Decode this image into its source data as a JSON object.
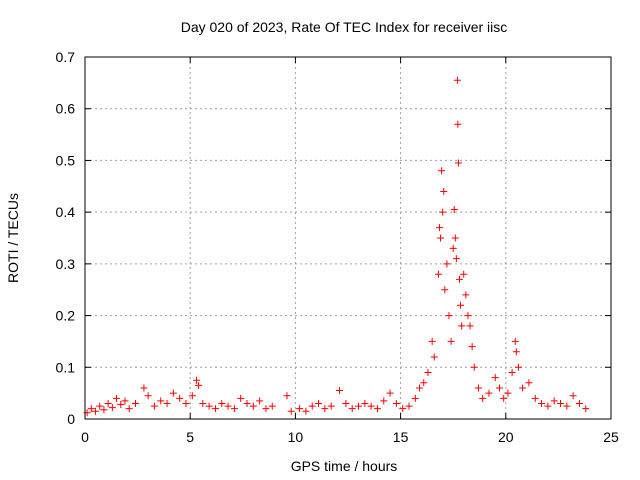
{
  "chart_data": {
    "type": "scatter",
    "title": "Day 020 of 2023, Rate Of TEC Index for receiver iisc",
    "xlabel": "GPS time / hours",
    "ylabel": "ROTI / TECUs",
    "xlim": [
      0,
      25
    ],
    "ylim": [
      0,
      0.7
    ],
    "x_ticks": [
      0,
      5,
      10,
      15,
      20,
      25
    ],
    "x_tick_labels": [
      "0",
      "5",
      "10",
      "15",
      "20",
      "25"
    ],
    "y_ticks": [
      0,
      0.1,
      0.2,
      0.3,
      0.4,
      0.5,
      0.6,
      0.7
    ],
    "y_tick_labels": [
      "0",
      "0.1",
      "0.2",
      "0.3",
      "0.4",
      "0.5",
      "0.6",
      "0.7"
    ],
    "grid": true,
    "marker": "+",
    "color": "#ff0000",
    "series": [
      {
        "name": "ROTI",
        "points": [
          [
            0.1,
            0.012
          ],
          [
            0.3,
            0.02
          ],
          [
            0.5,
            0.015
          ],
          [
            0.7,
            0.025
          ],
          [
            0.9,
            0.018
          ],
          [
            1.1,
            0.03
          ],
          [
            1.3,
            0.022
          ],
          [
            1.5,
            0.04
          ],
          [
            1.7,
            0.028
          ],
          [
            1.9,
            0.035
          ],
          [
            2.1,
            0.02
          ],
          [
            2.4,
            0.03
          ],
          [
            2.8,
            0.06
          ],
          [
            3.0,
            0.045
          ],
          [
            3.3,
            0.025
          ],
          [
            3.6,
            0.035
          ],
          [
            3.9,
            0.03
          ],
          [
            4.2,
            0.05
          ],
          [
            4.5,
            0.04
          ],
          [
            4.8,
            0.03
          ],
          [
            5.1,
            0.045
          ],
          [
            5.3,
            0.075
          ],
          [
            5.4,
            0.065
          ],
          [
            5.6,
            0.03
          ],
          [
            5.9,
            0.025
          ],
          [
            6.2,
            0.02
          ],
          [
            6.5,
            0.03
          ],
          [
            6.8,
            0.025
          ],
          [
            7.1,
            0.02
          ],
          [
            7.4,
            0.04
          ],
          [
            7.7,
            0.03
          ],
          [
            8.0,
            0.025
          ],
          [
            8.3,
            0.035
          ],
          [
            8.6,
            0.02
          ],
          [
            8.9,
            0.025
          ],
          [
            9.6,
            0.045
          ],
          [
            9.8,
            0.015
          ],
          [
            10.2,
            0.02
          ],
          [
            10.5,
            0.015
          ],
          [
            10.8,
            0.025
          ],
          [
            11.1,
            0.03
          ],
          [
            11.4,
            0.02
          ],
          [
            11.7,
            0.025
          ],
          [
            12.1,
            0.055
          ],
          [
            12.4,
            0.03
          ],
          [
            12.7,
            0.02
          ],
          [
            13.0,
            0.025
          ],
          [
            13.3,
            0.03
          ],
          [
            13.6,
            0.025
          ],
          [
            13.9,
            0.02
          ],
          [
            14.2,
            0.035
          ],
          [
            14.5,
            0.05
          ],
          [
            14.8,
            0.03
          ],
          [
            15.1,
            0.02
          ],
          [
            15.4,
            0.025
          ],
          [
            15.7,
            0.04
          ],
          [
            15.9,
            0.06
          ],
          [
            16.1,
            0.07
          ],
          [
            16.3,
            0.09
          ],
          [
            16.5,
            0.15
          ],
          [
            16.6,
            0.12
          ],
          [
            16.8,
            0.28
          ],
          [
            16.85,
            0.37
          ],
          [
            16.9,
            0.35
          ],
          [
            16.95,
            0.48
          ],
          [
            17.0,
            0.4
          ],
          [
            17.05,
            0.44
          ],
          [
            17.1,
            0.25
          ],
          [
            17.2,
            0.3
          ],
          [
            17.3,
            0.2
          ],
          [
            17.4,
            0.15
          ],
          [
            17.5,
            0.33
          ],
          [
            17.55,
            0.405
          ],
          [
            17.6,
            0.35
          ],
          [
            17.65,
            0.31
          ],
          [
            17.7,
            0.655
          ],
          [
            17.72,
            0.57
          ],
          [
            17.75,
            0.495
          ],
          [
            17.8,
            0.27
          ],
          [
            17.85,
            0.22
          ],
          [
            17.9,
            0.18
          ],
          [
            18.0,
            0.28
          ],
          [
            18.1,
            0.24
          ],
          [
            18.2,
            0.2
          ],
          [
            18.3,
            0.18
          ],
          [
            18.4,
            0.14
          ],
          [
            18.5,
            0.1
          ],
          [
            18.7,
            0.06
          ],
          [
            18.9,
            0.04
          ],
          [
            19.2,
            0.05
          ],
          [
            19.5,
            0.08
          ],
          [
            19.7,
            0.06
          ],
          [
            19.9,
            0.04
          ],
          [
            20.1,
            0.05
          ],
          [
            20.3,
            0.09
          ],
          [
            20.45,
            0.15
          ],
          [
            20.5,
            0.13
          ],
          [
            20.6,
            0.1
          ],
          [
            20.8,
            0.06
          ],
          [
            21.1,
            0.07
          ],
          [
            21.4,
            0.04
          ],
          [
            21.7,
            0.03
          ],
          [
            22.0,
            0.025
          ],
          [
            22.3,
            0.035
          ],
          [
            22.6,
            0.03
          ],
          [
            22.9,
            0.025
          ],
          [
            23.2,
            0.045
          ],
          [
            23.5,
            0.03
          ],
          [
            23.8,
            0.02
          ]
        ]
      }
    ]
  }
}
